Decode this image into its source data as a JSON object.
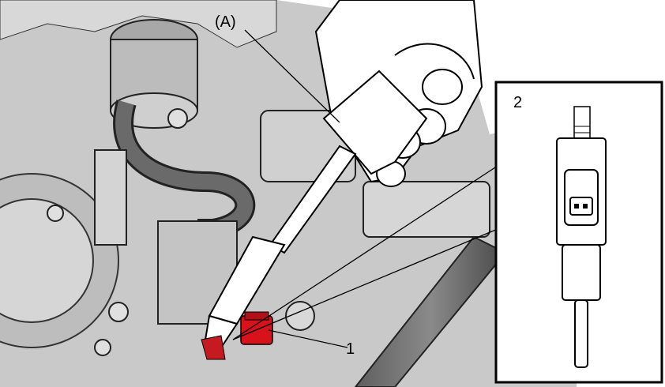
{
  "labels": {
    "tool": "(A)",
    "part_1": "1",
    "part_2": "2"
  },
  "colors": {
    "highlight": "#d8121b",
    "line": "#000000",
    "background": "#ffffff"
  },
  "icons": [
    "engine-illustration",
    "sensor-detail"
  ]
}
